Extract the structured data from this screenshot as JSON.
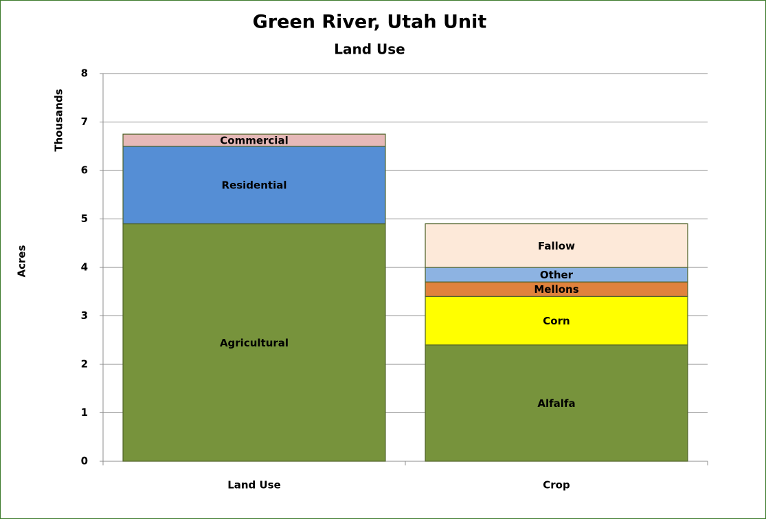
{
  "chart_data": {
    "type": "stacked_bar",
    "title": "Green River, Utah Unit",
    "subtitle": "Land Use",
    "y_label": "Acres",
    "y_units_label": "Thousands",
    "categories": [
      "Land Use",
      "Crop"
    ],
    "series": [
      {
        "name": "Agricultural",
        "color": "#77933c",
        "values": [
          4.9,
          null
        ]
      },
      {
        "name": "Residential",
        "color": "#558ed5",
        "values": [
          1.6,
          null
        ]
      },
      {
        "name": "Commercial",
        "color": "#e6b9b8",
        "values": [
          0.25,
          null
        ]
      },
      {
        "name": "Alfalfa",
        "color": "#77933c",
        "values": [
          null,
          2.4
        ]
      },
      {
        "name": "Corn",
        "color": "#ffff00",
        "values": [
          null,
          1.0
        ]
      },
      {
        "name": "Mellons",
        "color": "#e0823d",
        "values": [
          null,
          0.3
        ]
      },
      {
        "name": "Other",
        "color": "#8db3e2",
        "values": [
          null,
          0.3
        ]
      },
      {
        "name": "Fallow",
        "color": "#fde9d9",
        "values": [
          null,
          0.9
        ]
      }
    ],
    "ylim": [
      0,
      8
    ],
    "yticks": [
      0,
      1,
      2,
      3,
      4,
      5,
      6,
      7,
      8
    ],
    "grid": true
  }
}
